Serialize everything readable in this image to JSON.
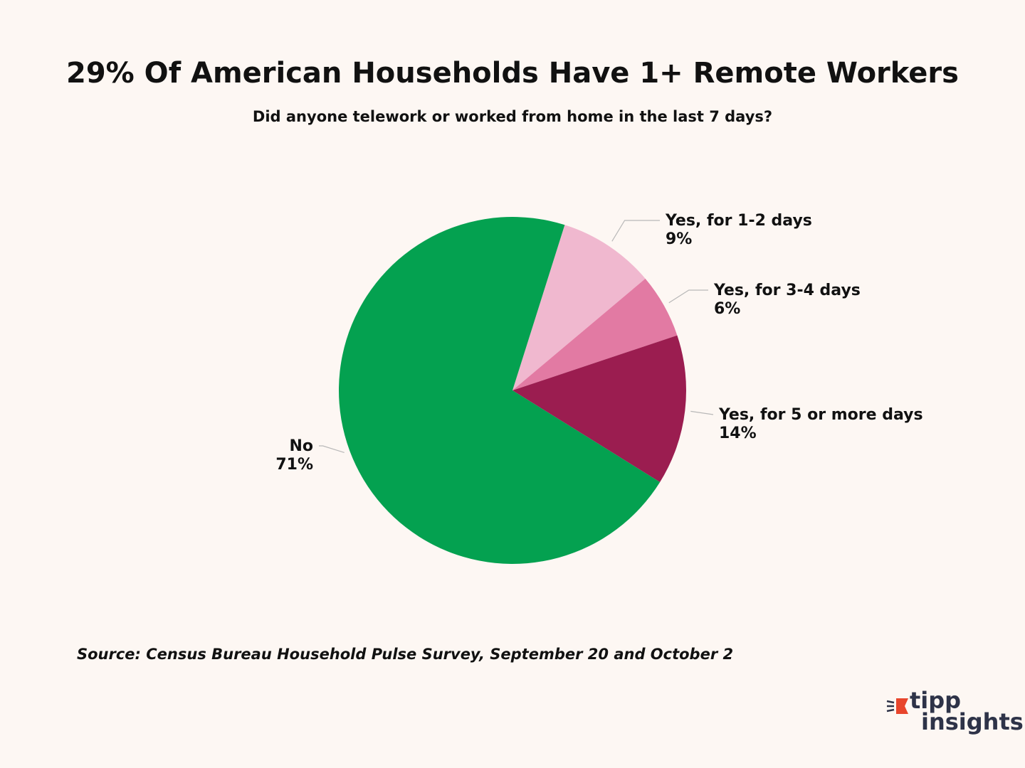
{
  "header": {
    "title": "29% Of American Households Have 1+ Remote Workers",
    "subtitle": "Did anyone telework or worked from home in the last 7 days?"
  },
  "chart_data": {
    "type": "pie",
    "slices": [
      {
        "label": "Yes, for 1-2 days",
        "value": 9,
        "value_label": "9%",
        "color": "#f0b8cf"
      },
      {
        "label": "Yes, for 3-4 days",
        "value": 6,
        "value_label": "6%",
        "color": "#e27aa3"
      },
      {
        "label": "Yes, for 5 or more days",
        "value": 14,
        "value_label": "14%",
        "color": "#9b1d50"
      },
      {
        "label": "No",
        "value": 71,
        "value_label": "71%",
        "color": "#04a150"
      }
    ]
  },
  "footer": {
    "source": "Source: Census Bureau Household Pulse Survey, September 20 and October 2"
  },
  "logo": {
    "line1": "tipp",
    "line2": "insights",
    "accent_color": "#e8452c",
    "text_color": "#2e3348"
  }
}
